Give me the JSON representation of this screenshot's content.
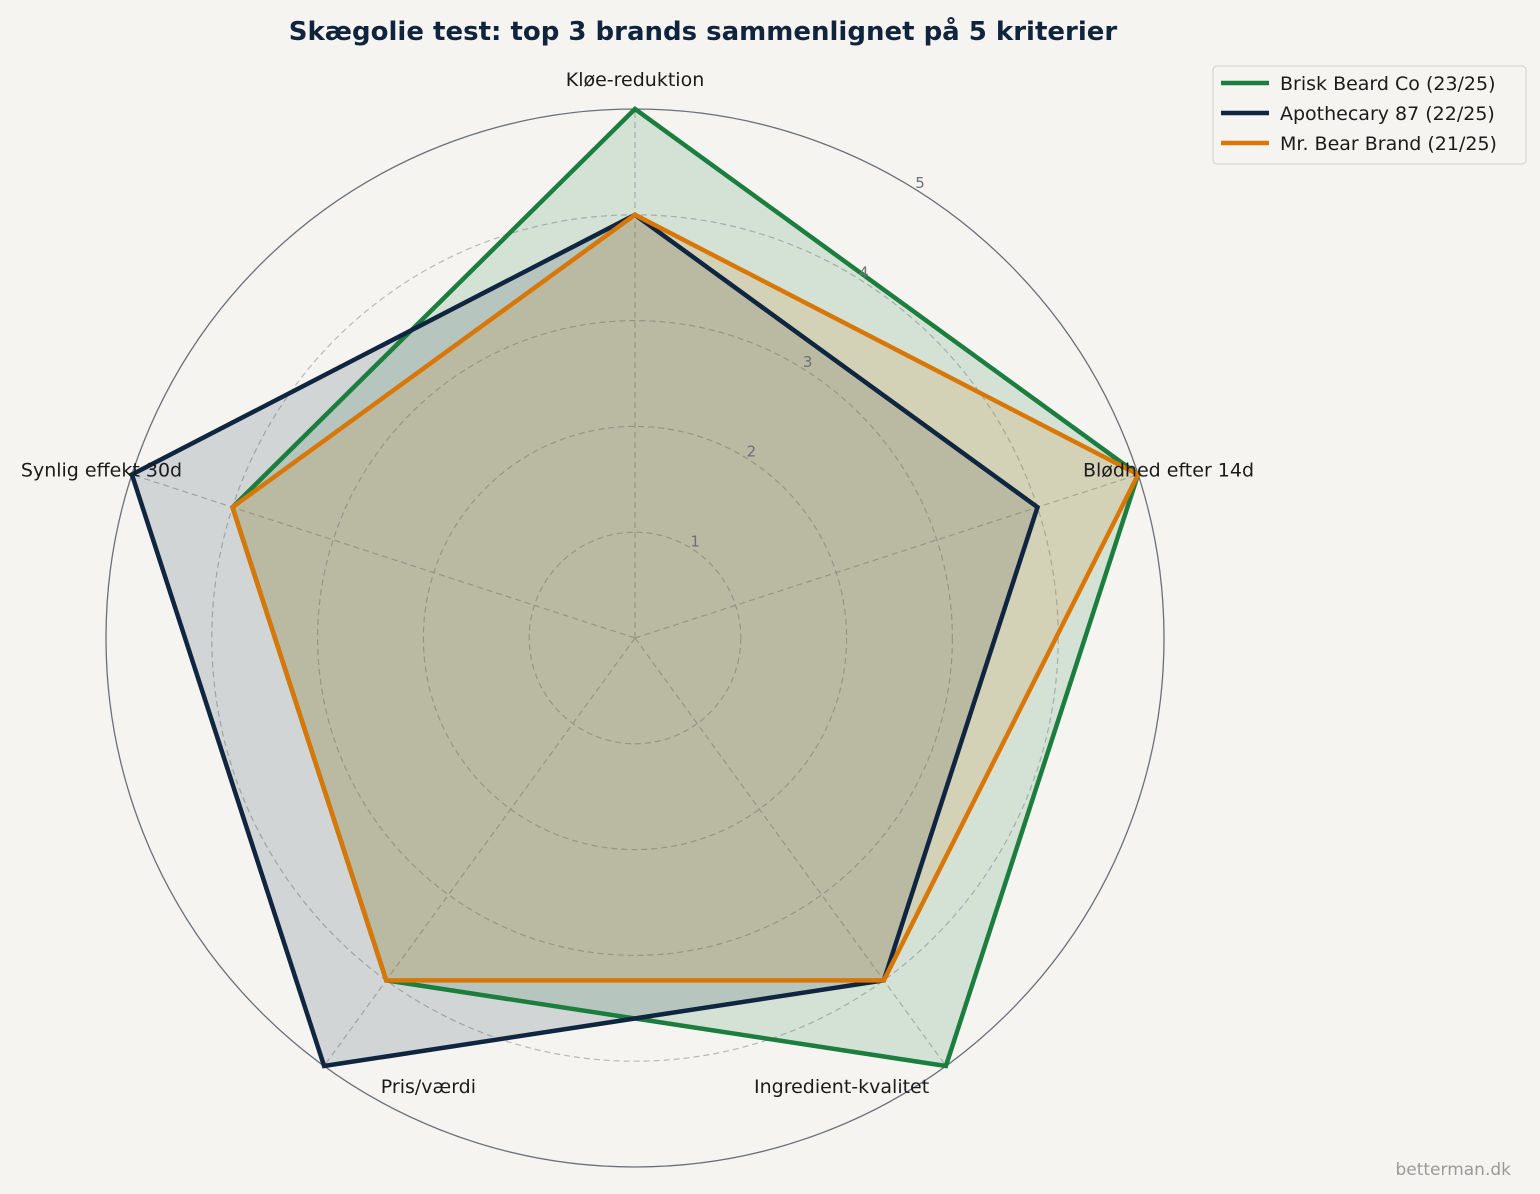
{
  "chart_data": {
    "type": "radar",
    "title": "Skægolie test: top 3 brands sammenlignet på 5 kriterier",
    "categories": [
      "Kløe-reduktion",
      "Blødhed efter 14d",
      "Ingredient-kvalitet",
      "Pris/værdi",
      "Synlig effekt 30d"
    ],
    "rlim": [
      0,
      5
    ],
    "rticks": [
      1,
      2,
      3,
      4,
      5
    ],
    "grid": true,
    "legend_position": "top-right",
    "series": [
      {
        "name": "Brisk Beard Co (23/25)",
        "color": "#1b7d3e",
        "values": [
          5,
          5,
          5,
          4,
          4
        ]
      },
      {
        "name": "Apothecary 87 (22/25)",
        "color": "#0f2540",
        "values": [
          4,
          4,
          4,
          5,
          5
        ]
      },
      {
        "name": "Mr. Bear Brand (21/25)",
        "color": "#d97706",
        "values": [
          4,
          5,
          4,
          4,
          4
        ]
      }
    ]
  },
  "credit": "betterman.dk"
}
